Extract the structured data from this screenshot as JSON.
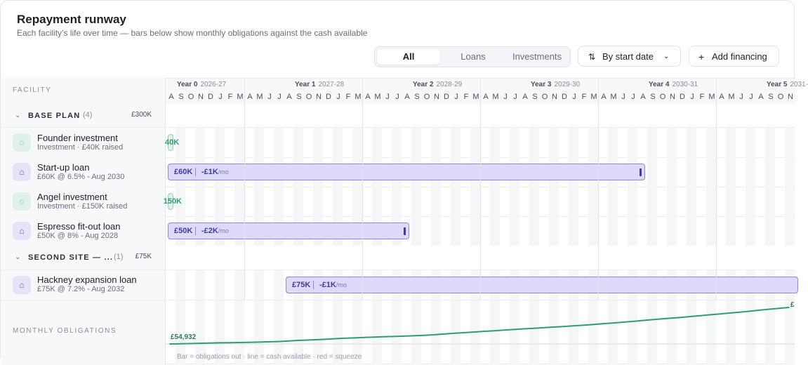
{
  "header": {
    "title": "Repayment runway",
    "subtitle": "Each facility’s life over time — bars below show monthly obligations against the cash available"
  },
  "filters": {
    "tabs": [
      "All",
      "Loans",
      "Investments"
    ],
    "active_tab": "All",
    "sort_label": "By start date",
    "add_label": "Add financing"
  },
  "timeline": {
    "column_header": "FACILITY",
    "years": [
      {
        "label": "Year 0",
        "range": "2026-27"
      },
      {
        "label": "Year 1",
        "range": "2027-28"
      },
      {
        "label": "Year 2",
        "range": "2028-29"
      },
      {
        "label": "Year 3",
        "range": "2029-30"
      },
      {
        "label": "Year 4",
        "range": "2030-31"
      },
      {
        "label": "Year 5",
        "range": "2031-"
      }
    ],
    "months": [
      "A",
      "S",
      "O",
      "N",
      "D",
      "J",
      "F",
      "M",
      "A",
      "M",
      "J",
      "J",
      "A",
      "S",
      "O",
      "N",
      "D",
      "J",
      "F",
      "M",
      "A",
      "M",
      "J",
      "J",
      "A",
      "S",
      "O",
      "N",
      "D",
      "J",
      "F",
      "M",
      "A",
      "M",
      "J",
      "J",
      "A",
      "S",
      "O",
      "N",
      "D",
      "J",
      "F",
      "M",
      "A",
      "M",
      "J",
      "J",
      "A",
      "S",
      "O",
      "N",
      "D",
      "J",
      "F",
      "M",
      "A",
      "M",
      "J",
      "J",
      "A",
      "S",
      "O",
      "N"
    ]
  },
  "groups": [
    {
      "label": "BASE PLAN",
      "count": "(4)",
      "total": "£300K",
      "facilities": [
        {
          "name": "Founder investment",
          "sub": "Investment · £40K raised",
          "kind": "investment",
          "icon": "piggy-bank-icon",
          "bar_label": "40K"
        },
        {
          "name": "Start-up loan",
          "sub": "£60K @ 6.5% - Aug 2030",
          "kind": "loan",
          "icon": "bank-icon",
          "amount": "£60K",
          "payment": "-£1K",
          "unit": "/mo"
        },
        {
          "name": "Angel investment",
          "sub": "Investment · £150K raised",
          "kind": "investment",
          "icon": "piggy-bank-icon",
          "bar_label": "150K"
        },
        {
          "name": "Espresso fit-out loan",
          "sub": "£50K @ 8% - Aug 2028",
          "kind": "loan",
          "icon": "bank-icon",
          "amount": "£50K",
          "payment": "-£2K",
          "unit": "/mo"
        }
      ]
    },
    {
      "label": "SECOND SITE — ...",
      "count": "(1)",
      "total": "£75K",
      "facilities": [
        {
          "name": "Hackney expansion loan",
          "sub": "£75K @ 7.2% - Aug 2032",
          "kind": "loan",
          "icon": "bank-icon",
          "amount": "£75K",
          "payment": "-£1K",
          "unit": "/mo"
        }
      ]
    }
  ],
  "obligations": {
    "label": "MONTHLY OBLIGATIONS",
    "start_value": "£54,932",
    "end_value": "£",
    "legend": "Bar = obligations out · line = cash available · red = squeeze",
    "colors": {
      "line": "#2f9e6b",
      "bar": "#8e86de",
      "investment": "#2f9e6b"
    }
  },
  "chart_data": {
    "type": "line",
    "series": [
      {
        "name": "cash available",
        "values": [
          54932,
          55100,
          55300,
          55600,
          55900,
          56100,
          56200,
          56400,
          56600,
          56800,
          57100,
          57400,
          57900,
          58500,
          58900,
          59300,
          59800,
          60400,
          60900,
          61300,
          61700,
          62100,
          62400,
          62700,
          63000,
          63400,
          63900,
          64500,
          65200,
          65900,
          66500,
          67200,
          67900,
          68500,
          69100,
          69800,
          70400,
          71000,
          71600,
          72200,
          72800,
          73500,
          74100,
          74800,
          75600,
          76400,
          77200,
          78000,
          78900,
          79800,
          80600,
          81400,
          82200,
          83100,
          84000,
          84900,
          85800,
          86700,
          87600,
          88500,
          89600,
          90600,
          91500,
          92400
        ]
      }
    ]
  }
}
